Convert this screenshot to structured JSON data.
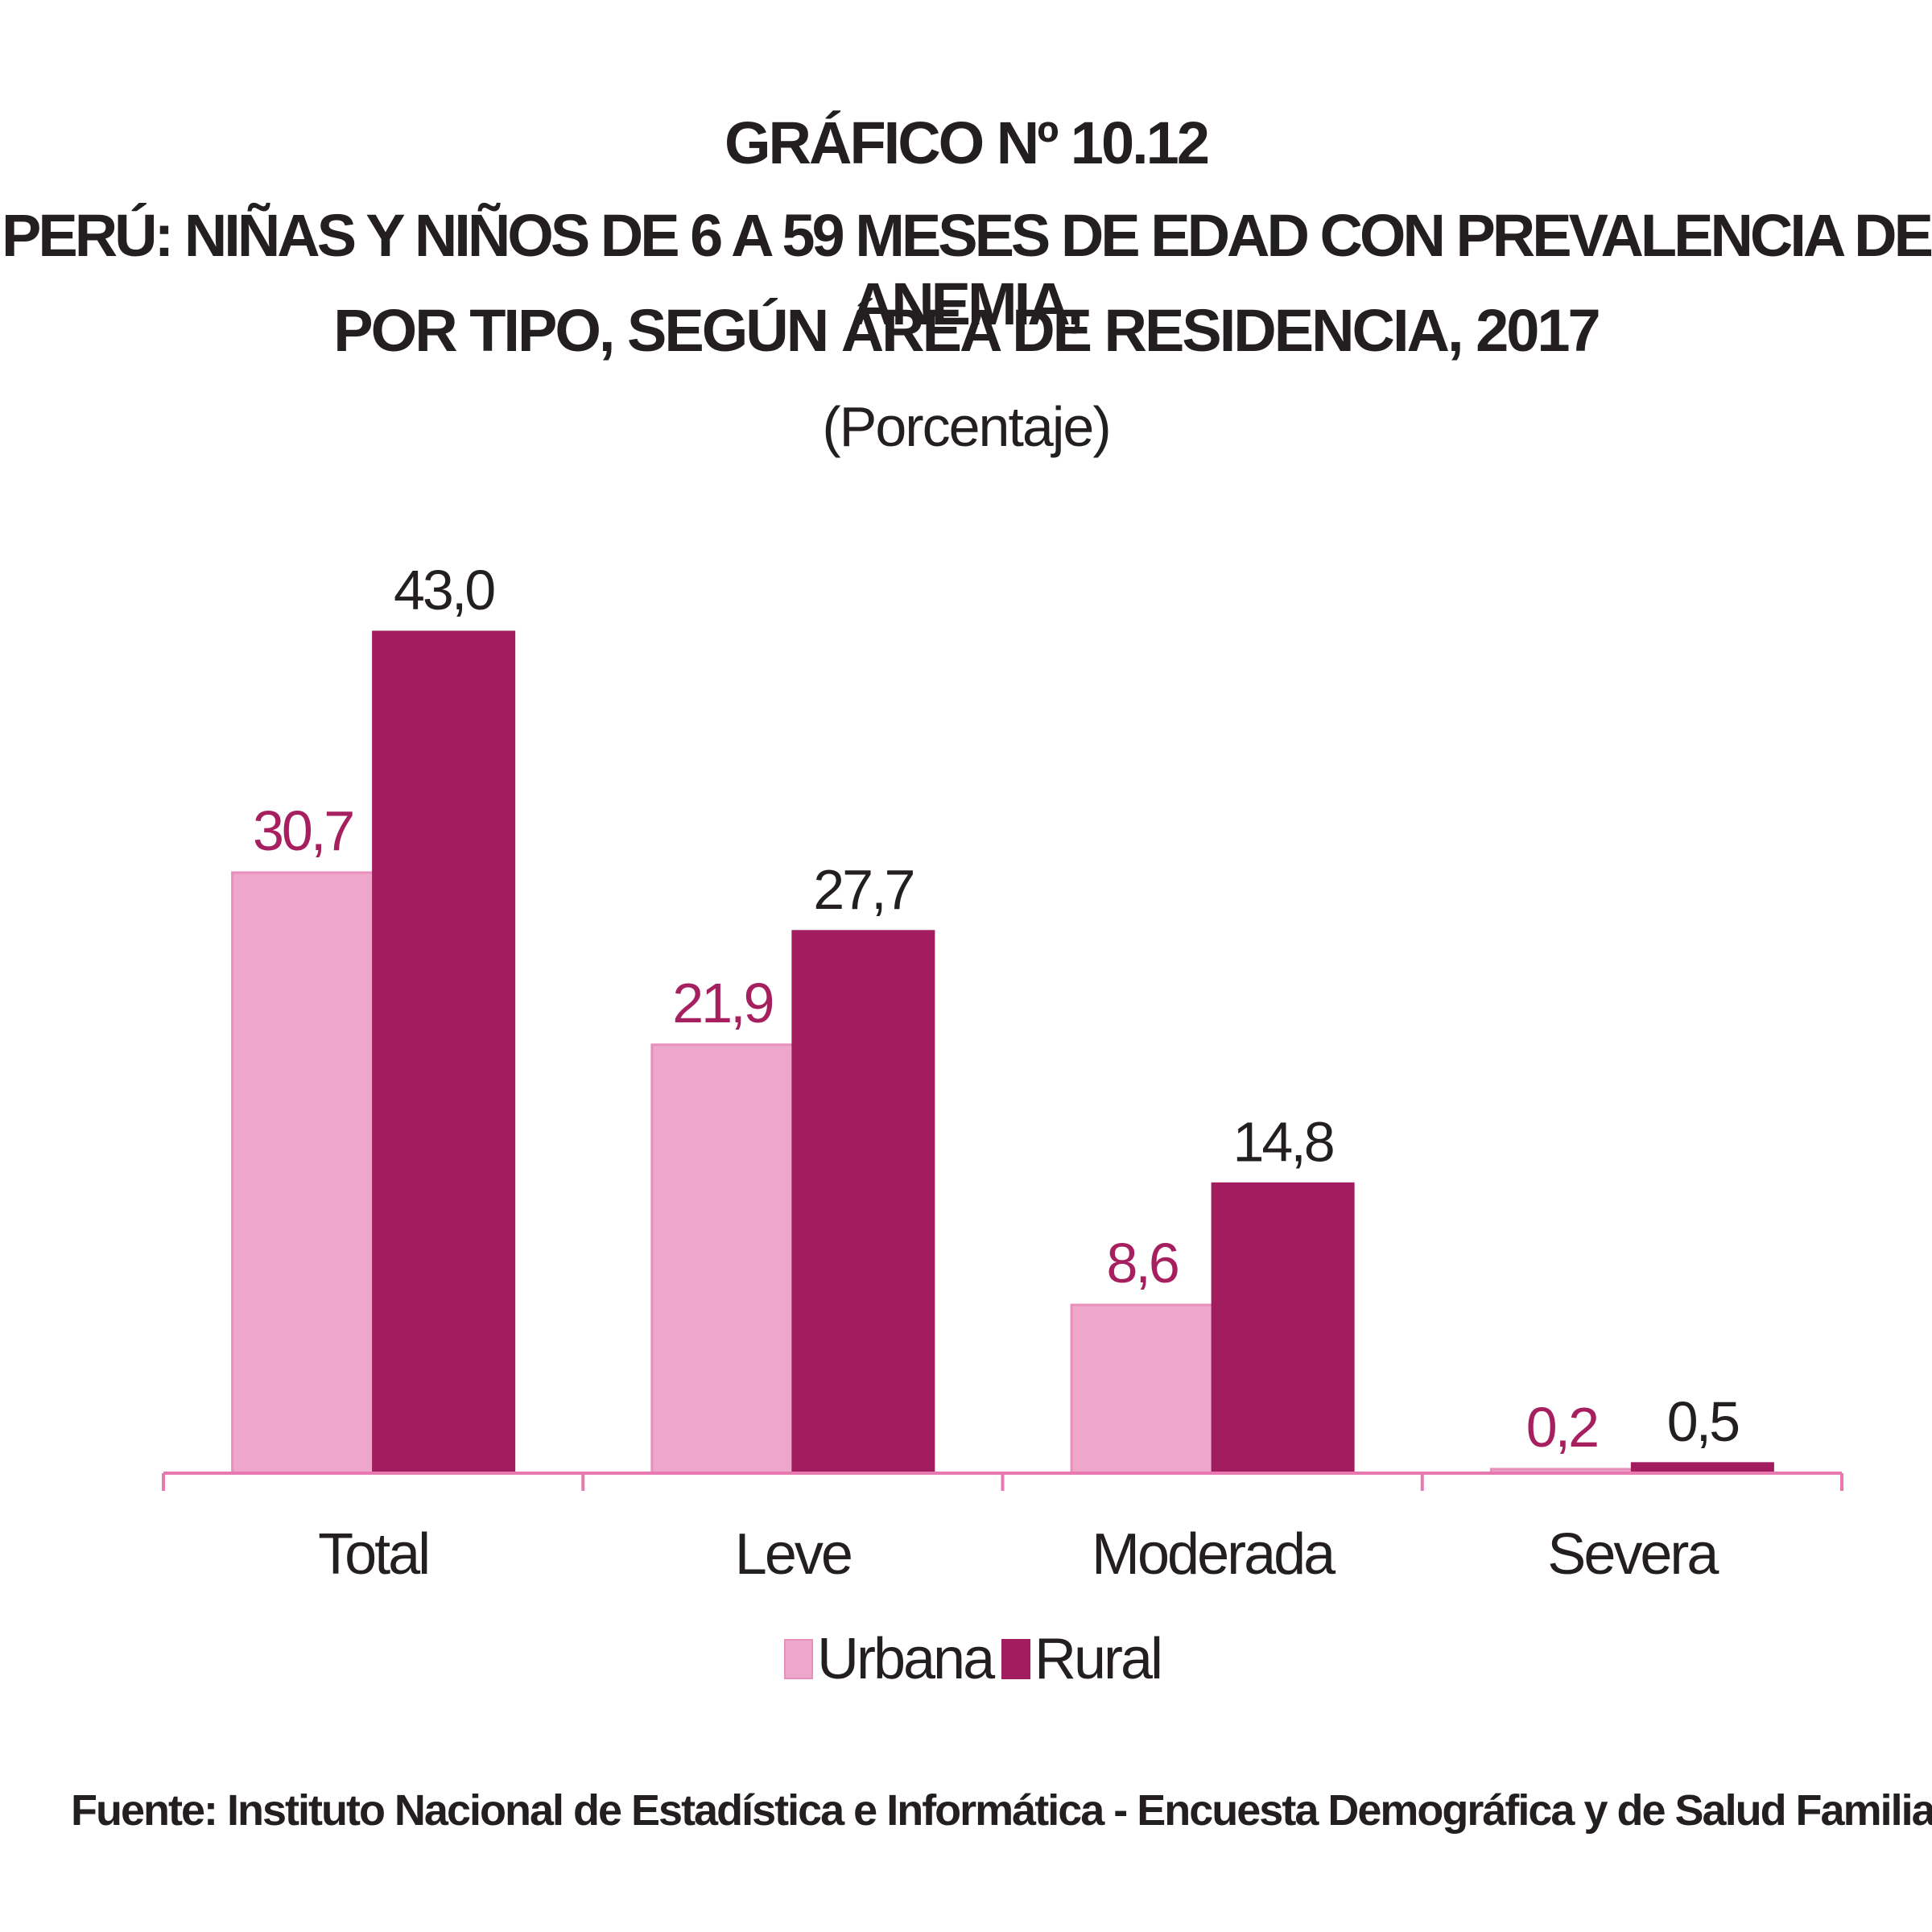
{
  "figure_label": "GRÁFICO Nº 10.12",
  "title_line1": "PERÚ: NIÑAS Y NIÑOS DE 6 A 59 MESES DE EDAD CON PREVALENCIA DE ANEMIA,",
  "title_line2": "POR TIPO, SEGÚN ÁREA DE RESIDENCIA, 2017",
  "unit": "(Porcentaje)",
  "source": "Fuente: Instituto Nacional de Estadística e Informática - Encuesta Demográfica y de Salud Familiar.",
  "chart_data": {
    "type": "bar",
    "title": "PERÚ: NIÑAS Y NIÑOS DE 6 A 59 MESES DE EDAD CON PREVALENCIA DE ANEMIA, POR TIPO, SEGÚN ÁREA DE RESIDENCIA, 2017",
    "subtitle": "(Porcentaje)",
    "categories": [
      "Total",
      "Leve",
      "Moderada",
      "Severa"
    ],
    "series": [
      {
        "name": "Urbana",
        "values": [
          30.7,
          21.9,
          8.6,
          0.2
        ],
        "labels": [
          "30,7",
          "21,9",
          "8,6",
          "0,2"
        ],
        "color": "#eea6cb",
        "label_color": "#a61f5e"
      },
      {
        "name": "Rural",
        "values": [
          43.0,
          27.7,
          14.8,
          0.5
        ],
        "labels": [
          "43,0",
          "27,7",
          "14,8",
          "0,5"
        ],
        "color": "#a21d5f",
        "label_color": "#231f20"
      }
    ],
    "ylim": [
      0,
      43
    ],
    "axis_color": "#e778b0",
    "grid": false,
    "legend_position": "bottom"
  }
}
